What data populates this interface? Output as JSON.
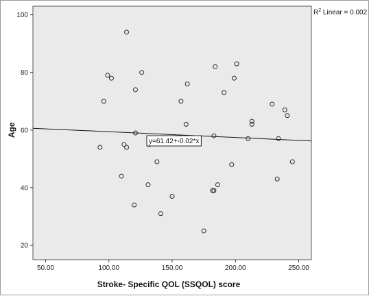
{
  "chart_data": {
    "type": "scatter",
    "xlabel": "Stroke- Specific QOL (SSQOL) score",
    "ylabel": "Age",
    "xlim": [
      40,
      260
    ],
    "ylim": [
      15,
      103
    ],
    "x_ticks": [
      50,
      100,
      150,
      200,
      250
    ],
    "x_tick_labels": [
      "50.00",
      "100.00",
      "150.00",
      "200.00",
      "250.00"
    ],
    "y_ticks": [
      20,
      40,
      60,
      80,
      100
    ],
    "y_tick_labels": [
      "20",
      "40",
      "60",
      "80",
      "100"
    ],
    "grid": false,
    "plot_background": "#eaeaea",
    "point_color": "#2b2b2b",
    "fit_line": {
      "intercept": 61.42,
      "slope": -0.02,
      "equation_label": "y=61.42+-0.02*x",
      "r2_prefix": "R",
      "r2_superscript": "2",
      "r2_suffix": " Linear = 0.002"
    },
    "points": [
      {
        "x": 93,
        "y": 54
      },
      {
        "x": 96,
        "y": 70
      },
      {
        "x": 99,
        "y": 79
      },
      {
        "x": 102,
        "y": 78
      },
      {
        "x": 110,
        "y": 44
      },
      {
        "x": 112,
        "y": 55
      },
      {
        "x": 114,
        "y": 54
      },
      {
        "x": 114,
        "y": 94
      },
      {
        "x": 120,
        "y": 34
      },
      {
        "x": 121,
        "y": 74
      },
      {
        "x": 121,
        "y": 59
      },
      {
        "x": 126,
        "y": 80
      },
      {
        "x": 131,
        "y": 41
      },
      {
        "x": 132,
        "y": 55
      },
      {
        "x": 138,
        "y": 49
      },
      {
        "x": 141,
        "y": 31
      },
      {
        "x": 150,
        "y": 37
      },
      {
        "x": 157,
        "y": 70
      },
      {
        "x": 161,
        "y": 62
      },
      {
        "x": 162,
        "y": 76
      },
      {
        "x": 175,
        "y": 25
      },
      {
        "x": 182,
        "y": 39
      },
      {
        "x": 183,
        "y": 39
      },
      {
        "x": 183,
        "y": 58
      },
      {
        "x": 184,
        "y": 82
      },
      {
        "x": 186,
        "y": 41
      },
      {
        "x": 191,
        "y": 73
      },
      {
        "x": 197,
        "y": 48
      },
      {
        "x": 199,
        "y": 78
      },
      {
        "x": 201,
        "y": 83
      },
      {
        "x": 210,
        "y": 57
      },
      {
        "x": 213,
        "y": 63
      },
      {
        "x": 213,
        "y": 62
      },
      {
        "x": 229,
        "y": 69
      },
      {
        "x": 233,
        "y": 43
      },
      {
        "x": 234,
        "y": 57
      },
      {
        "x": 239,
        "y": 67
      },
      {
        "x": 241,
        "y": 65
      },
      {
        "x": 245,
        "y": 49
      }
    ]
  }
}
